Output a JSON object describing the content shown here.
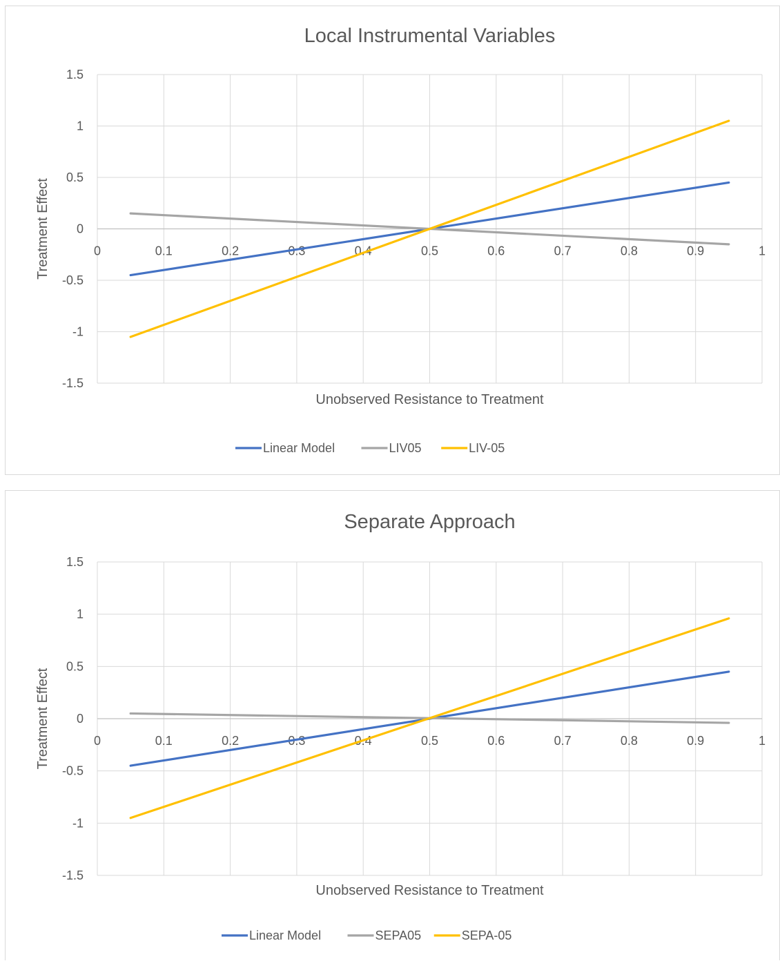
{
  "chart_data": [
    {
      "type": "line",
      "title": "Local Instrumental Variables",
      "xlabel": "Unobserved Resistance to Treatment",
      "ylabel": "Treatment Effect",
      "xlim": [
        0,
        1
      ],
      "ylim": [
        -1.5,
        1.5
      ],
      "x_ticks": [
        "0",
        "0.1",
        "0.2",
        "0.3",
        "0.4",
        "0.5",
        "0.6",
        "0.7",
        "0.8",
        "0.9",
        "1"
      ],
      "y_ticks": [
        "1.5",
        "1",
        "0.5",
        "0",
        "-0.5",
        "-1",
        "-1.5"
      ],
      "grid": true,
      "legend_position": "bottom",
      "series": [
        {
          "name": "Linear Model",
          "color": "#4472c4",
          "x": [
            0.05,
            0.95
          ],
          "y": [
            -0.45,
            0.45
          ]
        },
        {
          "name": "LIV05",
          "color": "#a5a5a5",
          "x": [
            0.05,
            0.95
          ],
          "y": [
            0.15,
            -0.15
          ]
        },
        {
          "name": "LIV-05",
          "color": "#ffc000",
          "x": [
            0.05,
            0.95
          ],
          "y": [
            -1.05,
            1.05
          ]
        }
      ]
    },
    {
      "type": "line",
      "title": "Separate Approach",
      "xlabel": "Unobserved Resistance to Treatment",
      "ylabel": "Treatment Effect",
      "xlim": [
        0,
        1
      ],
      "ylim": [
        -1.5,
        1.5
      ],
      "x_ticks": [
        "0",
        "0.1",
        "0.2",
        "0.3",
        "0.4",
        "0.5",
        "0.6",
        "0.7",
        "0.8",
        "0.9",
        "1"
      ],
      "y_ticks": [
        "1.5",
        "1",
        "0.5",
        "0",
        "-0.5",
        "-1",
        "-1.5"
      ],
      "grid": true,
      "legend_position": "bottom",
      "series": [
        {
          "name": "Linear Model",
          "color": "#4472c4",
          "x": [
            0.05,
            0.95
          ],
          "y": [
            -0.45,
            0.45
          ]
        },
        {
          "name": "SEPA05",
          "color": "#a5a5a5",
          "x": [
            0.05,
            0.95
          ],
          "y": [
            0.05,
            -0.04
          ]
        },
        {
          "name": "SEPA-05",
          "color": "#ffc000",
          "x": [
            0.05,
            0.95
          ],
          "y": [
            -0.95,
            0.96
          ]
        }
      ]
    }
  ]
}
